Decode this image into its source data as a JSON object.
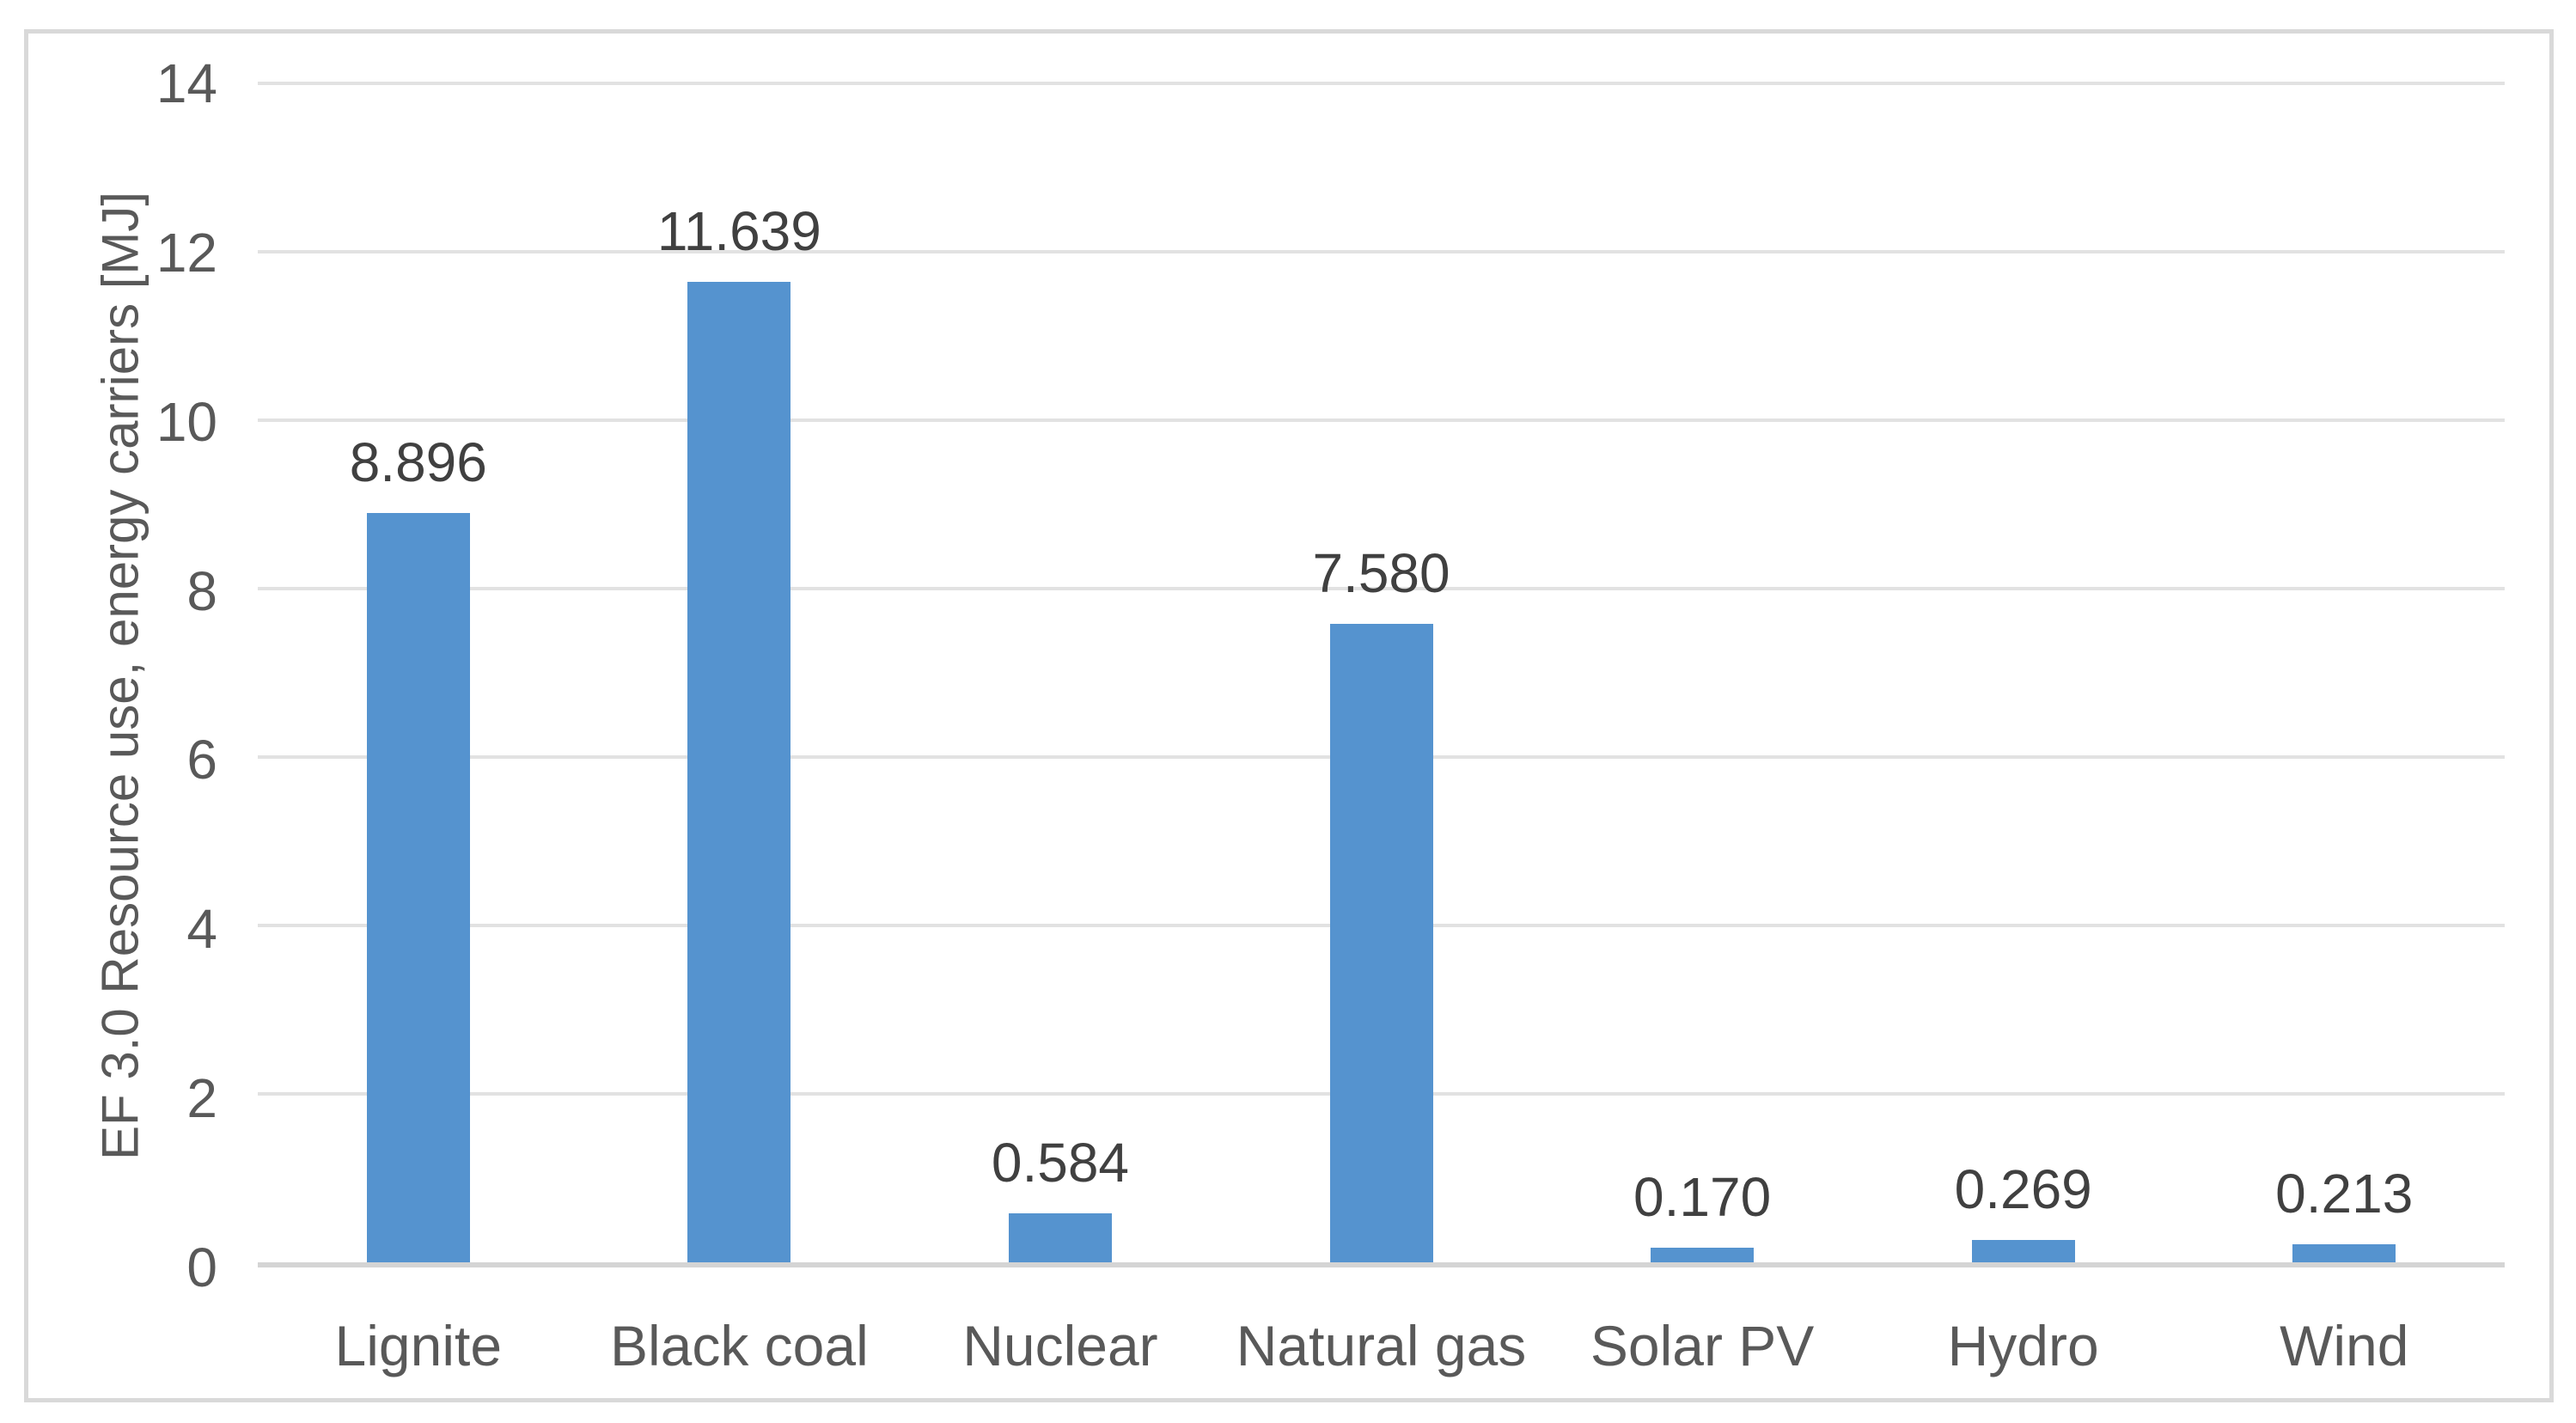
{
  "figure": {
    "background_color": "#FFFFFF",
    "border_color": "#D9D9D9"
  },
  "chart_data": {
    "type": "bar",
    "title": "",
    "xlabel": "",
    "ylabel": "EF 3.0 Resource use, energy carriers [MJ]",
    "categories": [
      "Lignite",
      "Black coal",
      "Nuclear",
      "Natural gas",
      "Solar PV",
      "Hydro",
      "Wind"
    ],
    "values": [
      8.896,
      11.639,
      0.584,
      7.58,
      0.17,
      0.269,
      0.213
    ],
    "value_labels": [
      "8.896",
      "11.639",
      "0.584",
      "7.580",
      "0.170",
      "0.269",
      "0.213"
    ],
    "ylim": [
      0,
      14
    ],
    "yticks": [
      0,
      2,
      4,
      6,
      8,
      10,
      12,
      14
    ],
    "grid": "horizontal",
    "legend": "none",
    "bar_color": "#5593CF",
    "gridline_color": "#E2E2E2",
    "axis_line_color": "#D4D4D4",
    "tick_text_color": "#595959",
    "value_label_color": "#404040",
    "category_text_color": "#595959"
  }
}
